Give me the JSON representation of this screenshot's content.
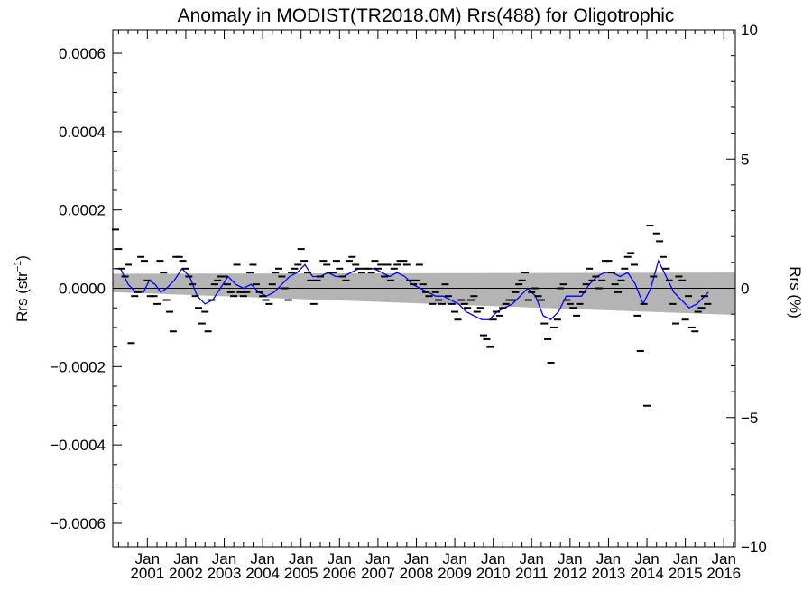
{
  "chart_data": {
    "type": "scatter",
    "title": "Anomaly in MODIST(TR2018.0M) Rrs(488) for Oligotrophic",
    "ylabel_left": "Rrs (str",
    "ylabel_left_sup": "−1",
    "ylabel_left_close": ")",
    "ylabel_right": "Rrs (%)",
    "x_unit": "year",
    "xlim": [
      2000.1,
      2016.3
    ],
    "ylim_left": [
      -0.00066,
      0.00066
    ],
    "ylim_right": [
      -10,
      10
    ],
    "y_ticks_left": [
      -0.0006,
      -0.0004,
      -0.0002,
      0.0,
      0.0002,
      0.0004,
      0.0006
    ],
    "y_tick_labels_left": [
      "−0.0006",
      "−0.0004",
      "−0.0002",
      "0.0000",
      "0.0002",
      "0.0004",
      "0.0006"
    ],
    "y_ticks_right": [
      -10,
      -5,
      0,
      5,
      10
    ],
    "y_tick_labels_right": [
      "−10",
      "−5",
      "0",
      "5",
      "10"
    ],
    "x_ticks": [
      2001,
      2002,
      2003,
      2004,
      2005,
      2006,
      2007,
      2008,
      2009,
      2010,
      2011,
      2012,
      2013,
      2014,
      2015,
      2016
    ],
    "x_tick_month": "Jan",
    "x_tick_years": [
      "2001",
      "2002",
      "2003",
      "2004",
      "2005",
      "2006",
      "2007",
      "2008",
      "2009",
      "2010",
      "2011",
      "2012",
      "2013",
      "2014",
      "2015",
      "2016"
    ],
    "zero_line": 0.0,
    "uncertainty_band": {
      "x": [
        2000.1,
        2016.3
      ],
      "upper": [
        3.7e-05,
        4e-05
      ],
      "lower": [
        -1e-05,
        -6.8e-05
      ],
      "color": "#b4b4b4"
    },
    "monthly_anomalies": {
      "marker": "dash",
      "color": "#000000",
      "points": [
        [
          2000.17,
          0.00015
        ],
        [
          2000.25,
          0.0001
        ],
        [
          2000.33,
          5e-05
        ],
        [
          2000.42,
          3e-05
        ],
        [
          2000.5,
          6e-05
        ],
        [
          2000.58,
          -0.00014
        ],
        [
          2000.67,
          -2e-05
        ],
        [
          2000.75,
          -1e-05
        ],
        [
          2000.83,
          8e-05
        ],
        [
          2000.92,
          7e-05
        ],
        [
          2001.0,
          2e-05
        ],
        [
          2001.08,
          -2e-05
        ],
        [
          2001.17,
          -2e-05
        ],
        [
          2001.25,
          -4e-05
        ],
        [
          2001.33,
          7e-05
        ],
        [
          2001.42,
          4e-05
        ],
        [
          2001.5,
          -3e-05
        ],
        [
          2001.58,
          -6e-05
        ],
        [
          2001.67,
          -0.00011
        ],
        [
          2001.75,
          8e-05
        ],
        [
          2001.83,
          8e-05
        ],
        [
          2001.92,
          7e-05
        ],
        [
          2002.0,
          5e-05
        ],
        [
          2002.08,
          3e-05
        ],
        [
          2002.17,
          1e-05
        ],
        [
          2002.25,
          -2e-05
        ],
        [
          2002.33,
          -5e-05
        ],
        [
          2002.42,
          -9e-05
        ],
        [
          2002.5,
          -6e-05
        ],
        [
          2002.58,
          -0.00011
        ],
        [
          2002.67,
          -3e-05
        ],
        [
          2002.75,
          1e-05
        ],
        [
          2002.83,
          2e-05
        ],
        [
          2002.92,
          3e-05
        ],
        [
          2003.0,
          3e-05
        ],
        [
          2003.08,
          1e-05
        ],
        [
          2003.17,
          -1e-05
        ],
        [
          2003.25,
          -2e-05
        ],
        [
          2003.33,
          6e-05
        ],
        [
          2003.42,
          -1e-05
        ],
        [
          2003.5,
          -2e-05
        ],
        [
          2003.58,
          -1e-05
        ],
        [
          2003.67,
          4e-05
        ],
        [
          2003.75,
          6e-05
        ],
        [
          2003.83,
          1e-05
        ],
        [
          2003.92,
          -1e-05
        ],
        [
          2004.0,
          -2e-05
        ],
        [
          2004.08,
          -3e-05
        ],
        [
          2004.17,
          -4e-05
        ],
        [
          2004.25,
          1e-05
        ],
        [
          2004.33,
          4e-05
        ],
        [
          2004.42,
          5e-05
        ],
        [
          2004.5,
          3e-05
        ],
        [
          2004.58,
          0.0
        ],
        [
          2004.67,
          -3e-05
        ],
        [
          2004.75,
          4e-05
        ],
        [
          2004.83,
          5e-05
        ],
        [
          2004.92,
          6e-05
        ],
        [
          2005.0,
          0.0001
        ],
        [
          2005.08,
          7e-05
        ],
        [
          2005.17,
          4e-05
        ],
        [
          2005.25,
          2e-05
        ],
        [
          2005.33,
          -4e-05
        ],
        [
          2005.42,
          2e-05
        ],
        [
          2005.5,
          3e-05
        ],
        [
          2005.58,
          7e-05
        ],
        [
          2005.67,
          6e-05
        ],
        [
          2005.75,
          4e-05
        ],
        [
          2005.83,
          4e-05
        ],
        [
          2005.92,
          7e-05
        ],
        [
          2006.0,
          5e-05
        ],
        [
          2006.08,
          3e-05
        ],
        [
          2006.17,
          2e-05
        ],
        [
          2006.25,
          7e-05
        ],
        [
          2006.33,
          8e-05
        ],
        [
          2006.42,
          6e-05
        ],
        [
          2006.5,
          5e-05
        ],
        [
          2006.58,
          4e-05
        ],
        [
          2006.67,
          5e-05
        ],
        [
          2006.75,
          5e-05
        ],
        [
          2006.83,
          4e-05
        ],
        [
          2006.92,
          7e-05
        ],
        [
          2007.0,
          5e-05
        ],
        [
          2007.08,
          6e-05
        ],
        [
          2007.17,
          3e-05
        ],
        [
          2007.25,
          6e-05
        ],
        [
          2007.33,
          2e-05
        ],
        [
          2007.42,
          5e-05
        ],
        [
          2007.5,
          6e-05
        ],
        [
          2007.58,
          7e-05
        ],
        [
          2007.67,
          7e-05
        ],
        [
          2007.75,
          6e-05
        ],
        [
          2007.83,
          2e-05
        ],
        [
          2007.92,
          1e-05
        ],
        [
          2008.0,
          2e-05
        ],
        [
          2008.08,
          6e-05
        ],
        [
          2008.17,
          1e-05
        ],
        [
          2008.25,
          -1e-05
        ],
        [
          2008.33,
          -2e-05
        ],
        [
          2008.42,
          -4e-05
        ],
        [
          2008.5,
          -1e-05
        ],
        [
          2008.58,
          -3e-05
        ],
        [
          2008.67,
          -4e-05
        ],
        [
          2008.75,
          1e-05
        ],
        [
          2008.83,
          -2e-05
        ],
        [
          2008.92,
          -4e-05
        ],
        [
          2009.0,
          -6e-05
        ],
        [
          2009.08,
          -8e-05
        ],
        [
          2009.17,
          -3e-05
        ],
        [
          2009.25,
          -4e-05
        ],
        [
          2009.33,
          -5e-05
        ],
        [
          2009.42,
          -3e-05
        ],
        [
          2009.5,
          -2e-05
        ],
        [
          2009.58,
          -6e-05
        ],
        [
          2009.67,
          -5e-05
        ],
        [
          2009.75,
          -0.00012
        ],
        [
          2009.83,
          -0.00013
        ],
        [
          2009.92,
          -0.00015
        ],
        [
          2010.0,
          -8e-05
        ],
        [
          2010.08,
          -6e-05
        ],
        [
          2010.17,
          -7e-05
        ],
        [
          2010.25,
          -5e-05
        ],
        [
          2010.33,
          -4e-05
        ],
        [
          2010.42,
          -3e-05
        ],
        [
          2010.5,
          -3e-05
        ],
        [
          2010.58,
          -1e-05
        ],
        [
          2010.67,
          1e-05
        ],
        [
          2010.75,
          2e-05
        ],
        [
          2010.83,
          4e-05
        ],
        [
          2010.92,
          -3e-05
        ],
        [
          2011.0,
          -1e-05
        ],
        [
          2011.08,
          0.0
        ],
        [
          2011.17,
          -2e-05
        ],
        [
          2011.25,
          -3e-05
        ],
        [
          2011.33,
          -9e-05
        ],
        [
          2011.42,
          -0.00013
        ],
        [
          2011.5,
          -0.00019
        ],
        [
          2011.58,
          -0.0001
        ],
        [
          2011.67,
          -8e-05
        ],
        [
          2011.75,
          0.0
        ],
        [
          2011.83,
          1e-05
        ],
        [
          2011.92,
          -3e-05
        ],
        [
          2012.0,
          -4e-05
        ],
        [
          2012.08,
          -5e-05
        ],
        [
          2012.17,
          -7e-05
        ],
        [
          2012.25,
          -4e-05
        ],
        [
          2012.33,
          -1e-05
        ],
        [
          2012.42,
          1e-05
        ],
        [
          2012.5,
          5e-05
        ],
        [
          2012.58,
          2e-05
        ],
        [
          2012.67,
          3e-05
        ],
        [
          2012.75,
          0.0
        ],
        [
          2012.83,
          2e-05
        ],
        [
          2012.92,
          7e-05
        ],
        [
          2013.0,
          7e-05
        ],
        [
          2013.08,
          4e-05
        ],
        [
          2013.17,
          1e-05
        ],
        [
          2013.25,
          -1e-05
        ],
        [
          2013.33,
          2e-05
        ],
        [
          2013.42,
          5e-05
        ],
        [
          2013.5,
          8e-05
        ],
        [
          2013.58,
          9e-05
        ],
        [
          2013.67,
          6e-05
        ],
        [
          2013.75,
          -7e-05
        ],
        [
          2013.83,
          -0.00016
        ],
        [
          2013.92,
          -4e-05
        ],
        [
          2014.0,
          -0.0003
        ],
        [
          2014.08,
          0.00016
        ],
        [
          2014.17,
          3e-05
        ],
        [
          2014.25,
          0.00014
        ],
        [
          2014.33,
          0.00012
        ],
        [
          2014.42,
          8e-05
        ],
        [
          2014.5,
          5e-05
        ],
        [
          2014.58,
          2e-05
        ],
        [
          2014.67,
          -4e-05
        ],
        [
          2014.75,
          -9e-05
        ],
        [
          2014.83,
          3e-05
        ],
        [
          2014.92,
          2e-05
        ],
        [
          2015.0,
          -8e-05
        ],
        [
          2015.08,
          -2e-05
        ],
        [
          2015.17,
          -0.0001
        ],
        [
          2015.25,
          -0.00011
        ],
        [
          2015.33,
          -6e-05
        ],
        [
          2015.42,
          -5e-05
        ],
        [
          2015.5,
          -2e-05
        ],
        [
          2015.58,
          -4e-05
        ]
      ]
    },
    "running_mean": {
      "color": "#0000ff",
      "points": [
        [
          2000.17,
          5e-05
        ],
        [
          2000.3,
          5e-05
        ],
        [
          2000.5,
          1e-05
        ],
        [
          2000.7,
          -1e-05
        ],
        [
          2000.9,
          -1e-05
        ],
        [
          2001.05,
          2e-05
        ],
        [
          2001.2,
          1e-05
        ],
        [
          2001.35,
          -1e-05
        ],
        [
          2001.5,
          0.0
        ],
        [
          2001.7,
          2e-05
        ],
        [
          2001.9,
          5e-05
        ],
        [
          2002.1,
          3e-05
        ],
        [
          2002.3,
          -2e-05
        ],
        [
          2002.5,
          -4e-05
        ],
        [
          2002.7,
          -3e-05
        ],
        [
          2002.9,
          0.0
        ],
        [
          2003.1,
          3e-05
        ],
        [
          2003.3,
          1e-05
        ],
        [
          2003.5,
          0.0
        ],
        [
          2003.7,
          1e-05
        ],
        [
          2003.9,
          -1e-05
        ],
        [
          2004.1,
          -2e-05
        ],
        [
          2004.3,
          -1e-05
        ],
        [
          2004.5,
          1e-05
        ],
        [
          2004.7,
          3e-05
        ],
        [
          2004.9,
          4e-05
        ],
        [
          2005.1,
          6e-05
        ],
        [
          2005.3,
          3e-05
        ],
        [
          2005.5,
          3e-05
        ],
        [
          2005.7,
          4e-05
        ],
        [
          2005.9,
          3e-05
        ],
        [
          2006.1,
          3e-05
        ],
        [
          2006.3,
          4e-05
        ],
        [
          2006.5,
          5e-05
        ],
        [
          2006.7,
          5e-05
        ],
        [
          2006.9,
          5e-05
        ],
        [
          2007.1,
          4e-05
        ],
        [
          2007.3,
          3e-05
        ],
        [
          2007.5,
          4e-05
        ],
        [
          2007.7,
          3e-05
        ],
        [
          2007.9,
          1e-05
        ],
        [
          2008.1,
          0.0
        ],
        [
          2008.3,
          -1e-05
        ],
        [
          2008.5,
          -2e-05
        ],
        [
          2008.7,
          -2e-05
        ],
        [
          2008.9,
          -3e-05
        ],
        [
          2009.1,
          -4e-05
        ],
        [
          2009.3,
          -6e-05
        ],
        [
          2009.5,
          -7e-05
        ],
        [
          2009.7,
          -8e-05
        ],
        [
          2009.9,
          -8e-05
        ],
        [
          2010.1,
          -6e-05
        ],
        [
          2010.3,
          -5e-05
        ],
        [
          2010.5,
          -4e-05
        ],
        [
          2010.7,
          -2e-05
        ],
        [
          2010.9,
          0.0
        ],
        [
          2011.1,
          -2e-05
        ],
        [
          2011.3,
          -7e-05
        ],
        [
          2011.5,
          -8e-05
        ],
        [
          2011.7,
          -6e-05
        ],
        [
          2011.9,
          -2e-05
        ],
        [
          2012.1,
          -2e-05
        ],
        [
          2012.3,
          -2e-05
        ],
        [
          2012.5,
          1e-05
        ],
        [
          2012.7,
          3e-05
        ],
        [
          2012.9,
          4e-05
        ],
        [
          2013.1,
          4e-05
        ],
        [
          2013.3,
          3e-05
        ],
        [
          2013.5,
          4e-05
        ],
        [
          2013.7,
          1e-05
        ],
        [
          2013.9,
          -4e-05
        ],
        [
          2014.1,
          0.0
        ],
        [
          2014.3,
          7e-05
        ],
        [
          2014.5,
          3e-05
        ],
        [
          2014.7,
          -1e-05
        ],
        [
          2014.9,
          -3e-05
        ],
        [
          2015.1,
          -5e-05
        ],
        [
          2015.3,
          -4e-05
        ],
        [
          2015.5,
          -2e-05
        ],
        [
          2015.6,
          -1e-05
        ]
      ]
    }
  }
}
